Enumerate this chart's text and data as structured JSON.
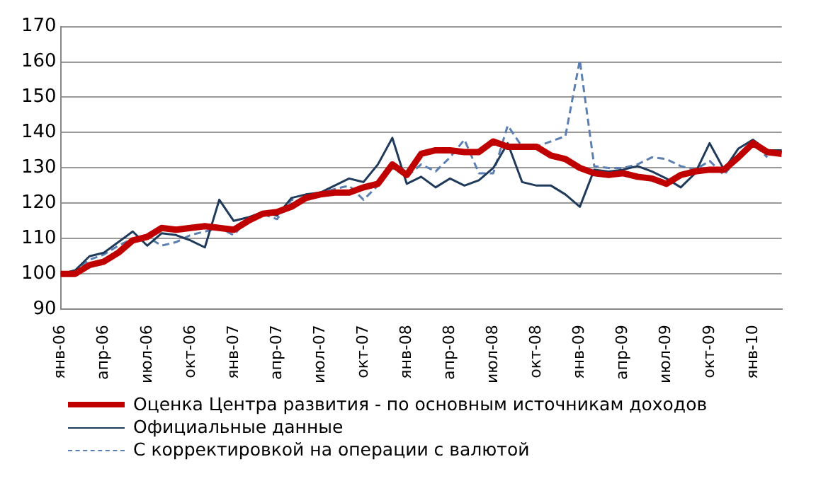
{
  "chart_data": {
    "type": "line",
    "categories": [
      "янв-06",
      null,
      null,
      "апр-06",
      null,
      null,
      "июл-06",
      null,
      null,
      "окт-06",
      null,
      null,
      "янв-07",
      null,
      null,
      "апр-07",
      null,
      null,
      "июл-07",
      null,
      null,
      "окт-07",
      null,
      null,
      "янв-08",
      null,
      null,
      "апр-08",
      null,
      null,
      "июл-08",
      null,
      null,
      "окт-08",
      null,
      null,
      "янв-09",
      null,
      null,
      "апр-09",
      null,
      null,
      "июл-09",
      null,
      null,
      "окт-09",
      null,
      null,
      "янв-10",
      null,
      null
    ],
    "series": [
      {
        "name": "Оценка Центра развития - по основным источникам доходов",
        "color": "#c00000",
        "line_style": "solid",
        "values": [
          100,
          100,
          102.5,
          103.5,
          106,
          109.5,
          110.5,
          113,
          112.5,
          113,
          113.5,
          113,
          112.5,
          115,
          117,
          117.5,
          119,
          121.5,
          122.5,
          123,
          123,
          124.5,
          125.5,
          131,
          128,
          134,
          135,
          135,
          134.5,
          134.5,
          137.5,
          136,
          136,
          136,
          133.5,
          132.5,
          130,
          128.5,
          128,
          128.5,
          127.5,
          127,
          125.5,
          128,
          129,
          129.5,
          129.5,
          133,
          137,
          134.5,
          134
        ]
      },
      {
        "name": "Официальные данные",
        "color": "#1f3a5a",
        "line_style": "solid",
        "values": [
          100,
          101,
          105,
          106,
          109,
          112,
          108,
          111.5,
          111,
          109.5,
          107.5,
          121,
          115,
          116,
          117.5,
          116.5,
          121.5,
          122.5,
          123,
          125,
          127,
          126,
          131,
          138.5,
          125.5,
          127.5,
          124.5,
          127,
          125,
          126.5,
          130,
          137,
          126,
          125,
          125,
          122.5,
          119,
          129.5,
          129,
          129.5,
          130.5,
          129,
          127,
          124.5,
          128.5,
          137,
          129.5,
          135.5,
          138,
          135,
          135
        ]
      },
      {
        "name": "С корректировкой на операции с валютой",
        "color": "#5b7fb0",
        "line_style": "dashed",
        "values": [
          100,
          101,
          104,
          105.5,
          108,
          110,
          110.5,
          108,
          109,
          111,
          112,
          113,
          111,
          115.5,
          117,
          115.5,
          121,
          120.5,
          123,
          124,
          125,
          121,
          125,
          130,
          127.5,
          131,
          129,
          133,
          138,
          128.5,
          128.5,
          142,
          136,
          136,
          137.5,
          139,
          160.5,
          130.5,
          130,
          130,
          131,
          133,
          132.5,
          130.5,
          129.5,
          132,
          128,
          133,
          137,
          133,
          null
        ]
      }
    ],
    "ylim": [
      90,
      170
    ],
    "yticks": [
      90,
      100,
      110,
      120,
      130,
      140,
      150,
      160,
      170
    ],
    "grid": "y",
    "legend": "bottom",
    "marker": "none"
  }
}
